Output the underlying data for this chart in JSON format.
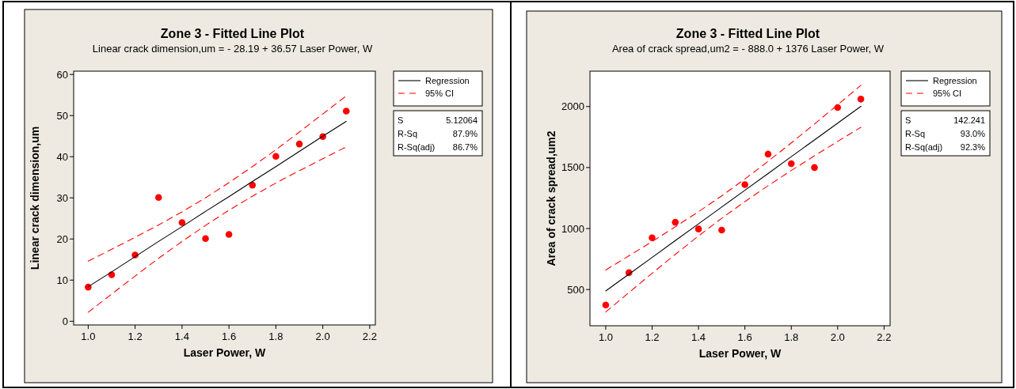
{
  "chart_data": [
    {
      "type": "scatter",
      "title": "Zone 3 - Fitted Line Plot",
      "subtitle": "Linear crack dimension,um =  - 28.19 + 36.57 Laser Power, W",
      "xlabel": "Laser Power, W",
      "ylabel": "Linear crack dimension,um",
      "xlim": [
        0.938,
        2.224
      ],
      "xticks": [
        {
          "value": 1.0,
          "label": "1.0"
        },
        {
          "value": 1.2,
          "label": "1.2"
        },
        {
          "value": 1.4,
          "label": "1.4"
        },
        {
          "value": 1.6,
          "label": "1.6"
        },
        {
          "value": 1.8,
          "label": "1.8"
        },
        {
          "value": 2.0,
          "label": "2.0"
        },
        {
          "value": 2.2,
          "label": "2.2"
        }
      ],
      "ylim": [
        -0.9,
        60.8
      ],
      "yticks": [
        0,
        10,
        20,
        30,
        40,
        50,
        60
      ],
      "grid": false,
      "legend": "top right",
      "x": [
        1.0,
        1.1,
        1.2,
        1.3,
        1.4,
        1.5,
        1.6,
        1.7,
        1.8,
        1.9,
        2.0,
        2.1
      ],
      "series": [
        {
          "type": "scatter",
          "color": "#ff0000",
          "marker": "circle",
          "values": [
            8.3,
            11.3,
            16.1,
            30.1,
            24.0,
            20.1,
            21.1,
            33.1,
            40.1,
            43.1,
            44.9,
            51.1
          ]
        },
        {
          "type": "line",
          "name": "Regression",
          "color": "#000000",
          "line_style": "solid",
          "marker": "none",
          "values": [
            8.4,
            12.0,
            15.7,
            19.4,
            23.0,
            26.7,
            30.3,
            34.0,
            37.6,
            41.3,
            45.0,
            48.6
          ]
        },
        {
          "type": "line",
          "name": "95% CI",
          "color": "#ff0000",
          "line_style": "dashed",
          "marker": "none",
          "values": [
            14.6,
            17.5,
            20.4,
            23.4,
            26.6,
            30.0,
            33.7,
            37.6,
            41.7,
            46.0,
            50.4,
            54.8
          ]
        },
        {
          "type": "line",
          "color": "#ff0000",
          "line_style": "dashed",
          "marker": "none",
          "values": [
            2.2,
            6.6,
            11.0,
            15.3,
            19.4,
            23.3,
            27.0,
            30.4,
            33.6,
            36.6,
            39.5,
            42.4
          ]
        }
      ],
      "annotations": [
        "S",
        "5.12064",
        "R-Sq",
        "87.9%",
        "R-Sq(adj)",
        "86.7%"
      ]
    },
    {
      "type": "scatter",
      "title": "Zone 3 - Fitted Line Plot",
      "subtitle": "Area of crack spread,um2 =  - 888.0 + 1376 Laser Power, W",
      "xlabel": "Laser Power, W",
      "ylabel": "Area of crack spread,um2",
      "xlim": [
        0.932,
        2.226
      ],
      "xticks": [
        {
          "value": 1.0,
          "label": "1.0"
        },
        {
          "value": 1.2,
          "label": "1.2"
        },
        {
          "value": 1.4,
          "label": "1.4"
        },
        {
          "value": 1.6,
          "label": "1.6"
        },
        {
          "value": 1.8,
          "label": "1.8"
        },
        {
          "value": 2.0,
          "label": "2.0"
        },
        {
          "value": 2.2,
          "label": "2.2"
        }
      ],
      "ylim": [
        203,
        2290
      ],
      "yticks": [
        500,
        1000,
        1500,
        2000
      ],
      "grid": false,
      "legend": "top right",
      "x": [
        1.0,
        1.1,
        1.2,
        1.3,
        1.4,
        1.5,
        1.6,
        1.7,
        1.8,
        1.9,
        2.0,
        2.1
      ],
      "series": [
        {
          "type": "scatter",
          "color": "#ff0000",
          "marker": "circle",
          "values": [
            373,
            638,
            924,
            1051,
            996,
            987,
            1360,
            1610,
            1532,
            1500,
            1992,
            2061
          ]
        },
        {
          "type": "line",
          "name": "Regression",
          "color": "#000000",
          "line_style": "solid",
          "marker": "none",
          "values": [
            488,
            626,
            763,
            901,
            1038,
            1176,
            1314,
            1451,
            1589,
            1726,
            1864,
            2002
          ]
        },
        {
          "type": "line",
          "name": "95% CI",
          "color": "#ff0000",
          "line_style": "dashed",
          "marker": "none",
          "values": [
            660,
            776,
            893,
            1014,
            1138,
            1268,
            1406,
            1551,
            1702,
            1857,
            2014,
            2174
          ]
        },
        {
          "type": "line",
          "color": "#ff0000",
          "line_style": "dashed",
          "marker": "none",
          "values": [
            316,
            475,
            633,
            788,
            939,
            1084,
            1221,
            1351,
            1476,
            1596,
            1714,
            1830
          ]
        }
      ],
      "annotations": [
        "S",
        "142.241",
        "R-Sq",
        "93.0%",
        "R-Sq(adj)",
        "92.3%"
      ]
    }
  ]
}
